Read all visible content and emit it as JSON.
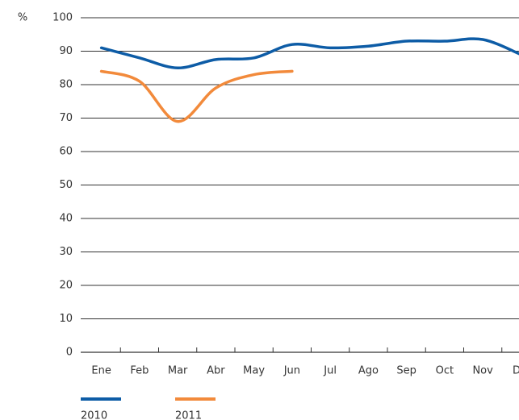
{
  "chart_data": {
    "type": "line",
    "y_label": "%",
    "categories": [
      "Ene",
      "Feb",
      "Mar",
      "Abr",
      "May",
      "Jun",
      "Jul",
      "Ago",
      "Sep",
      "Oct",
      "Nov",
      "Dic"
    ],
    "series": [
      {
        "name": "2010",
        "color": "#0d5ca6",
        "values": [
          91,
          88,
          85,
          87.5,
          88,
          92,
          91,
          91.5,
          93,
          93,
          93.5,
          89
        ]
      },
      {
        "name": "2011",
        "color": "#f28a3b",
        "values": [
          84,
          81,
          69,
          79,
          83,
          84,
          null,
          null,
          null,
          null,
          null,
          null
        ]
      }
    ],
    "ylim": [
      0,
      100
    ],
    "yticks": [
      0,
      10,
      20,
      30,
      40,
      50,
      60,
      70,
      80,
      90,
      100
    ],
    "grid": true,
    "smooth": true,
    "legend": "bottom"
  }
}
